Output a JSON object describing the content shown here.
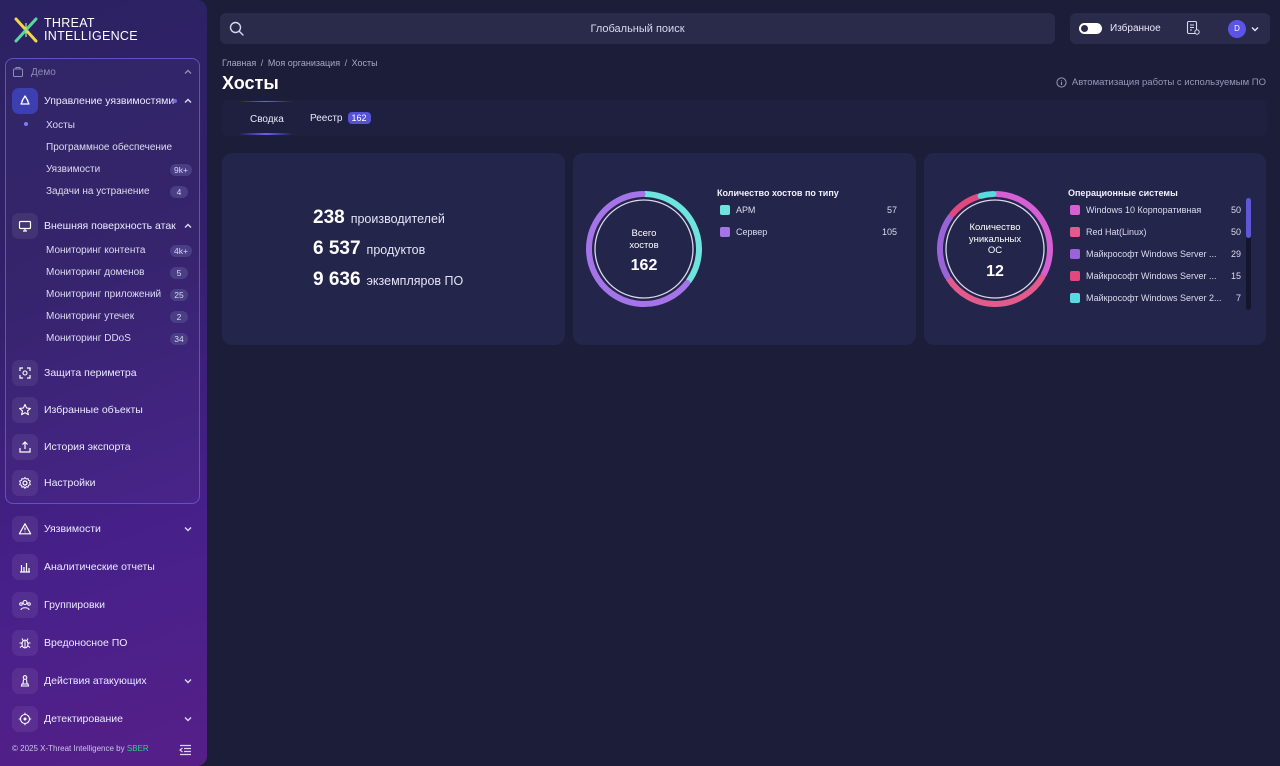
{
  "brand": {
    "line1": "THREAT",
    "line2": "INTELLIGENCE"
  },
  "sidebar": {
    "group_label": "Демо",
    "vuln_mgmt": {
      "label": "Управление уязвимостями",
      "items": [
        {
          "label": "Хосты",
          "badge": ""
        },
        {
          "label": "Программное обеспечение",
          "badge": ""
        },
        {
          "label": "Уязвимости",
          "badge": "9k+"
        },
        {
          "label": "Задачи на устранение",
          "badge": "4"
        }
      ]
    },
    "surface": {
      "label": "Внешняя поверхность атак",
      "items": [
        {
          "label": "Мониторинг контента",
          "badge": "4k+"
        },
        {
          "label": "Мониторинг доменов",
          "badge": "5"
        },
        {
          "label": "Мониторинг приложений",
          "badge": "25"
        },
        {
          "label": "Мониторинг утечек",
          "badge": "2"
        },
        {
          "label": "Мониторинг DDoS",
          "badge": "34"
        }
      ]
    },
    "perimeter": "Защита периметра",
    "favorites": "Избранные объекты",
    "export_history": "История экспорта",
    "settings": "Настройки",
    "vulnerabilities": "Уязвимости",
    "reports": "Аналитические отчеты",
    "groups": "Группировки",
    "malware": "Вредоносное ПО",
    "attacker_actions": "Действия атакующих",
    "detection": "Детектирование",
    "footer_text": "© 2025 X-Threat Intelligence by ",
    "footer_brand": "SBER"
  },
  "topbar": {
    "search_placeholder": "Глобальный поиск",
    "favorites_label": "Избранное",
    "avatar_letter": "D"
  },
  "page": {
    "breadcrumbs": [
      "Главная",
      "/",
      "Моя организация",
      "/",
      "Хосты"
    ],
    "title": "Хосты",
    "automation_hint": "Автоматизация работы с используемым ПО",
    "tabs": [
      {
        "label": "Сводка"
      },
      {
        "label": "Реестр",
        "badge": "162"
      }
    ]
  },
  "stats": [
    {
      "value": "238",
      "label": "производителей"
    },
    {
      "value": "6 537",
      "label": "продуктов"
    },
    {
      "value": "9 636",
      "label": "экземпляров ПО"
    }
  ],
  "colors": {
    "arm": "#6fe3dd",
    "server": "#a474e8",
    "win10": "#d65fd3",
    "redhat": "#e25b8c",
    "winserver1": "#9b63d8",
    "winserver2": "#e0487e",
    "winserver3": "#59d9e0"
  },
  "chart_data": [
    {
      "type": "pie",
      "title": "Количество хостов по типу",
      "center_label_1": "Всего",
      "center_label_2": "хостов",
      "center_value": "162",
      "categories": [
        "АРМ",
        "Сервер"
      ],
      "values": [
        57,
        105
      ]
    },
    {
      "type": "pie",
      "title": "Операционные системы",
      "center_label_1": "Количество",
      "center_label_2": "уникальных",
      "center_label_3": "ОС",
      "center_value": "12",
      "categories": [
        "Windows 10 Корпоративная",
        "Red Hat(Linux)",
        "Майкрософт Windows Server ...",
        "Майкрософт Windows Server ...",
        "Майкрософт Windows Server 2..."
      ],
      "values": [
        50,
        50,
        29,
        15,
        7
      ]
    }
  ]
}
